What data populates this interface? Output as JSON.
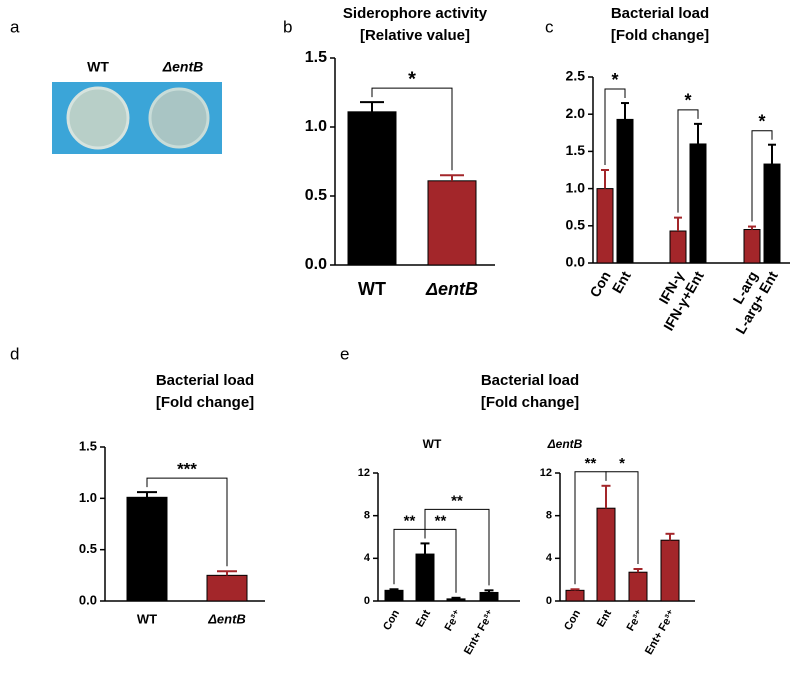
{
  "panel_labels": [
    "a",
    "b",
    "c",
    "d",
    "e"
  ],
  "image_panel": {
    "labels": [
      "WT",
      "ΔentB"
    ]
  },
  "panel_e": {
    "title": "Bacterial load",
    "subtitle": "[Fold change]"
  },
  "chart_data": [
    {
      "type": "bar",
      "title": "Siderophore activity",
      "subtitle": "[Relative value]",
      "categories": [
        "WT",
        "ΔentB"
      ],
      "values": [
        1.11,
        0.61
      ],
      "errors": [
        0.07,
        0.04
      ],
      "colors": [
        "#000000",
        "#a3262a"
      ],
      "ylim": [
        0,
        1.5
      ],
      "yticks": [
        {
          "value": 0,
          "label": "0.0"
        },
        {
          "value": 0.5,
          "label": "0.5"
        },
        {
          "value": 1,
          "label": "1.0"
        },
        {
          "value": 1.5,
          "label": "1.5"
        }
      ],
      "significance": [
        {
          "from": 0,
          "to": 1,
          "label": "*"
        }
      ]
    },
    {
      "type": "bar",
      "title": "Bacterial load",
      "subtitle": "[Fold change]",
      "categories": [
        "Con",
        "Ent",
        "IFN-γ",
        "IFN-γ+Ent",
        "L-arg",
        "L-arg+ Ent"
      ],
      "values": [
        1.0,
        1.93,
        0.43,
        1.6,
        0.45,
        1.33
      ],
      "errors": [
        0.25,
        0.22,
        0.18,
        0.27,
        0.04,
        0.26
      ],
      "colors": [
        "#a3262a",
        "#000000",
        "#a3262a",
        "#000000",
        "#a3262a",
        "#000000"
      ],
      "ylim": [
        0,
        2.5
      ],
      "yticks": [
        {
          "value": 0,
          "label": "0.0"
        },
        {
          "value": 0.5,
          "label": "0.5"
        },
        {
          "value": 1,
          "label": "1.0"
        },
        {
          "value": 1.5,
          "label": "1.5"
        },
        {
          "value": 2,
          "label": "2.0"
        },
        {
          "value": 2.5,
          "label": "2.5"
        }
      ],
      "significance": [
        {
          "from": 0,
          "to": 1,
          "label": "*"
        },
        {
          "from": 2,
          "to": 3,
          "label": "*"
        },
        {
          "from": 4,
          "to": 5,
          "label": "*"
        }
      ]
    },
    {
      "type": "bar",
      "title": "Bacterial load",
      "subtitle": "[Fold change]",
      "categories": [
        "WT",
        "ΔentB"
      ],
      "values": [
        1.01,
        0.25
      ],
      "errors": [
        0.05,
        0.04
      ],
      "colors": [
        "#000000",
        "#a3262a"
      ],
      "ylim": [
        0,
        1.5
      ],
      "yticks": [
        {
          "value": 0,
          "label": "0.0"
        },
        {
          "value": 0.5,
          "label": "0.5"
        },
        {
          "value": 1,
          "label": "1.0"
        },
        {
          "value": 1.5,
          "label": "1.5"
        }
      ],
      "significance": [
        {
          "from": 0,
          "to": 1,
          "label": "***"
        }
      ]
    },
    {
      "type": "bar",
      "title": "WT",
      "categories": [
        "Con",
        "Ent",
        "Fe³⁺",
        "Ent+ Fe³⁺"
      ],
      "values": [
        1.0,
        4.4,
        0.2,
        0.8
      ],
      "errors": [
        0.1,
        1.0,
        0.1,
        0.2
      ],
      "colors": [
        "#000000",
        "#000000",
        "#000000",
        "#000000"
      ],
      "ylim": [
        0,
        12
      ],
      "yticks": [
        0,
        4,
        8,
        12
      ],
      "significance": [
        {
          "from": 0,
          "to": 1,
          "label": "**"
        },
        {
          "from": 1,
          "to": 2,
          "label": "**"
        },
        {
          "from": 1,
          "to": 3,
          "label": "**"
        }
      ]
    },
    {
      "type": "bar",
      "title": "ΔentB",
      "categories": [
        "Con",
        "Ent",
        "Fe³⁺",
        "Ent+ Fe³⁺"
      ],
      "values": [
        1.0,
        8.7,
        2.7,
        5.7
      ],
      "errors": [
        0.1,
        2.1,
        0.3,
        0.6
      ],
      "colors": [
        "#a3262a",
        "#a3262a",
        "#a3262a",
        "#a3262a"
      ],
      "ylim": [
        0,
        12
      ],
      "yticks": [
        0,
        4,
        8,
        12
      ],
      "significance": [
        {
          "from": 0,
          "to": 1,
          "label": "**"
        },
        {
          "from": 1,
          "to": 2,
          "label": "*"
        }
      ]
    }
  ]
}
